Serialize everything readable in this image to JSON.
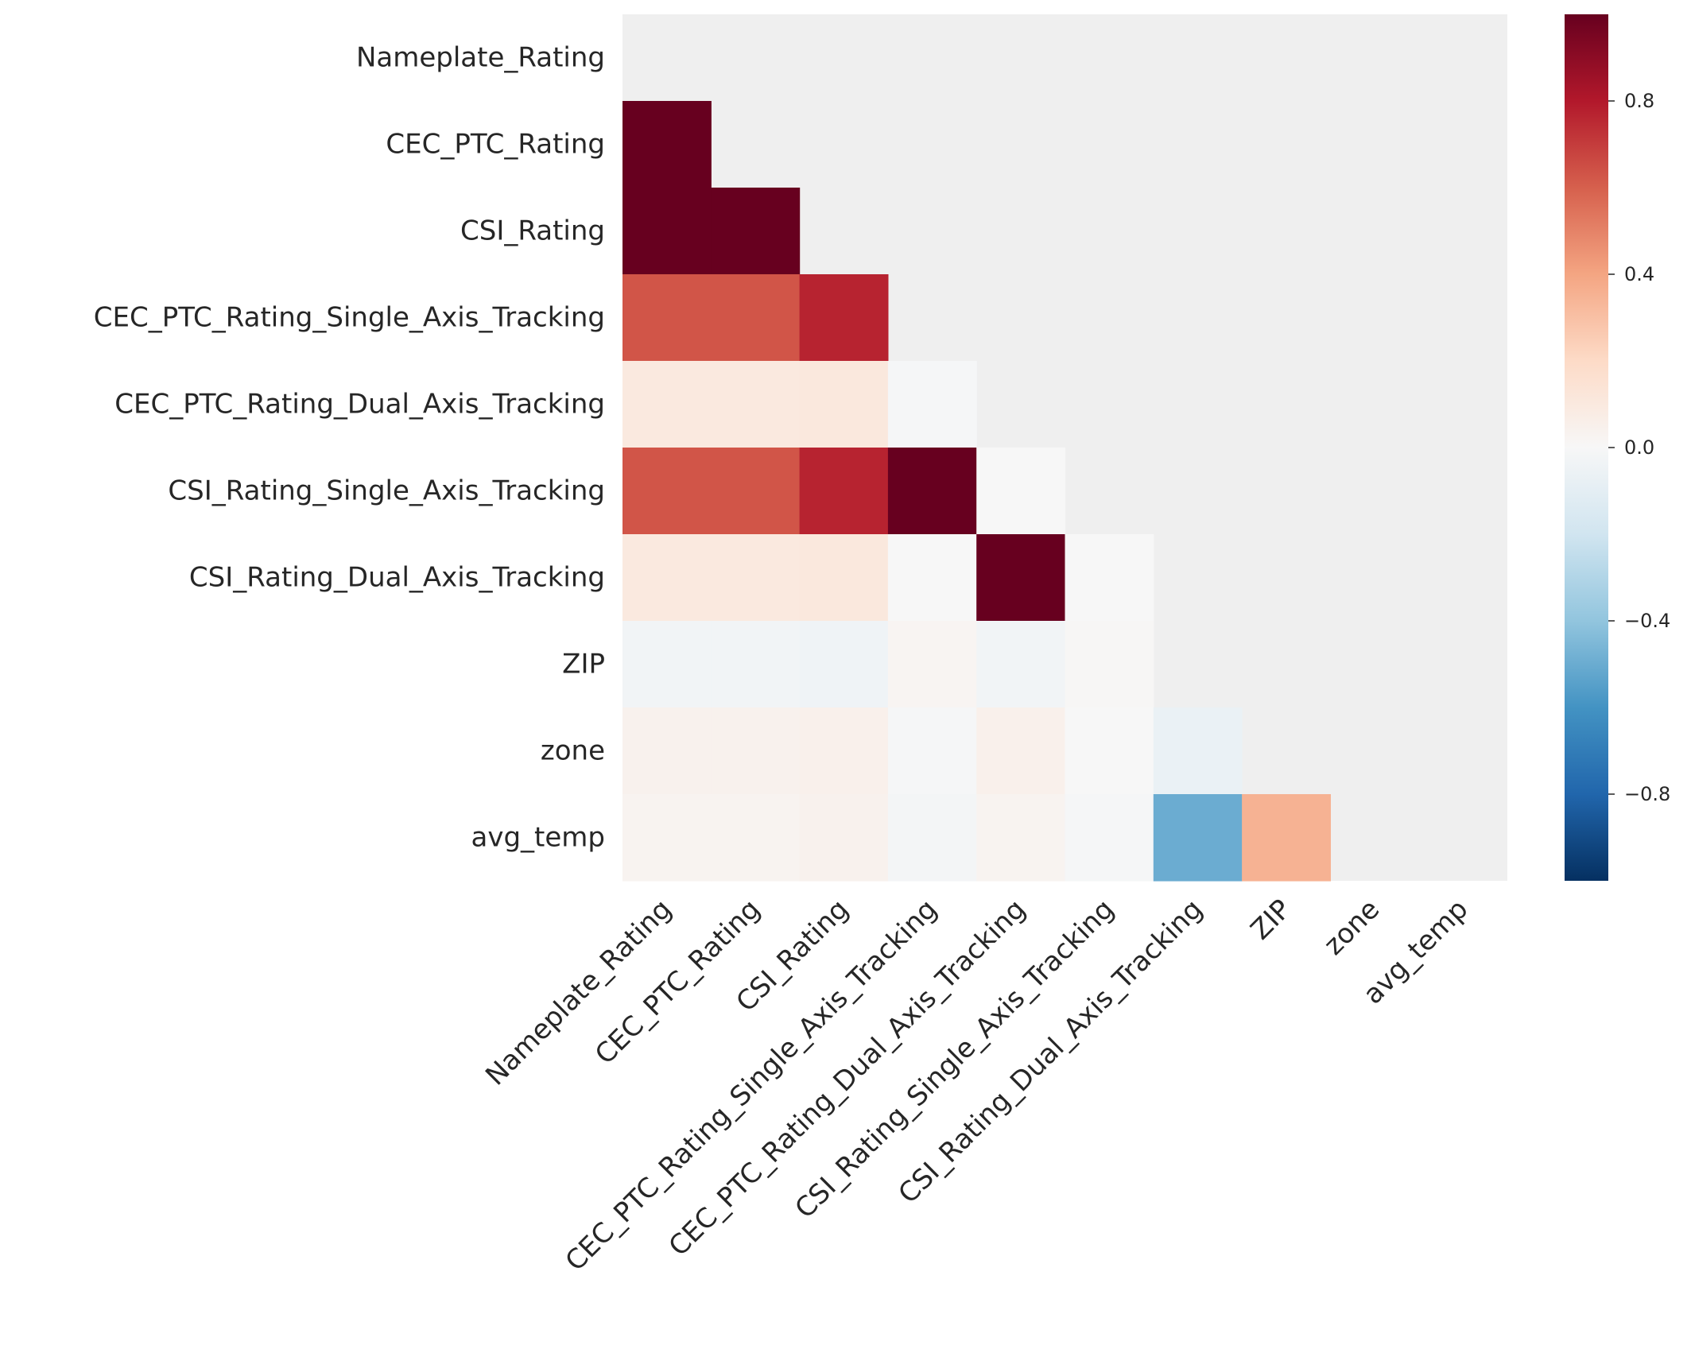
{
  "chart_data": {
    "type": "heatmap",
    "title": "",
    "xlabel": "",
    "ylabel": "",
    "mask": "upper-triangle-including-diagonal",
    "variables": [
      "Nameplate_Rating",
      "CEC_PTC_Rating",
      "CSI_Rating",
      "CEC_PTC_Rating_Single_Axis_Tracking",
      "CEC_PTC_Rating_Dual_Axis_Tracking",
      "CSI_Rating_Single_Axis_Tracking",
      "CSI_Rating_Dual_Axis_Tracking",
      "ZIP",
      "zone",
      "avg_temp"
    ],
    "matrix": [
      [
        null,
        null,
        null,
        null,
        null,
        null,
        null,
        null,
        null,
        null
      ],
      [
        1.0,
        null,
        null,
        null,
        null,
        null,
        null,
        null,
        null,
        null
      ],
      [
        1.0,
        1.0,
        null,
        null,
        null,
        null,
        null,
        null,
        null,
        null
      ],
      [
        0.63,
        0.63,
        0.77,
        null,
        null,
        null,
        null,
        null,
        null,
        null
      ],
      [
        0.1,
        0.1,
        0.11,
        -0.01,
        null,
        null,
        null,
        null,
        null,
        null
      ],
      [
        0.63,
        0.63,
        0.77,
        1.0,
        0.0,
        null,
        null,
        null,
        null,
        null
      ],
      [
        0.1,
        0.1,
        0.11,
        0.0,
        1.0,
        0.0,
        null,
        null,
        null,
        null
      ],
      [
        -0.03,
        -0.03,
        -0.04,
        0.02,
        -0.03,
        0.01,
        null,
        null,
        null,
        null
      ],
      [
        0.04,
        0.04,
        0.05,
        -0.01,
        0.05,
        0.0,
        -0.07,
        null,
        null,
        null
      ],
      [
        0.03,
        0.03,
        0.04,
        -0.02,
        0.03,
        -0.01,
        -0.5,
        0.35,
        null,
        null
      ]
    ],
    "vmin": -1,
    "vmax": 1,
    "colormap": "RdBu_r",
    "mask_color": "#efefef",
    "colorbar": {
      "ticks": [
        0.8,
        0.4,
        0.0,
        -0.4,
        -0.8
      ],
      "tick_labels": [
        "0.8",
        "0.4",
        "0.0",
        "−0.4",
        "−0.8"
      ]
    },
    "grid": false,
    "legend": "colorbar-right"
  }
}
